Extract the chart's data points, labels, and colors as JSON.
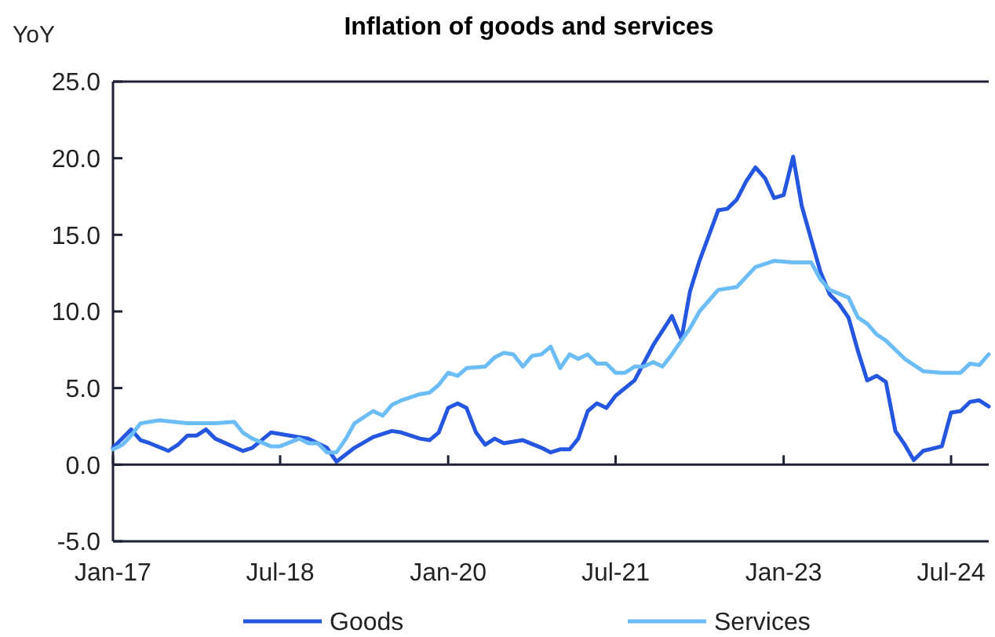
{
  "chart_data": {
    "type": "line",
    "title": "Inflation of goods and services",
    "ylabel": "YoY",
    "xlim": [
      "2017-01",
      "2024-11"
    ],
    "xticks": [
      {
        "value": "2017-01",
        "label": "Jan-17"
      },
      {
        "value": "2018-07",
        "label": "Jul-18"
      },
      {
        "value": "2020-01",
        "label": "Jan-20"
      },
      {
        "value": "2021-07",
        "label": "Jul-21"
      },
      {
        "value": "2023-01",
        "label": "Jan-23"
      },
      {
        "value": "2024-07",
        "label": "Jul-24"
      }
    ],
    "ylim": [
      -5,
      25
    ],
    "yticks": [
      {
        "value": -5,
        "label": "-5.0"
      },
      {
        "value": 0,
        "label": "0.0"
      },
      {
        "value": 5,
        "label": "5.0"
      },
      {
        "value": 10,
        "label": "10.0"
      },
      {
        "value": 15,
        "label": "15.0"
      },
      {
        "value": 20,
        "label": "20.0"
      },
      {
        "value": 25,
        "label": "25.0"
      }
    ],
    "legend": "bottom",
    "marker": "none",
    "line_style": "solid",
    "series": [
      {
        "name": "Goods",
        "color": "#2456e0",
        "x": [
          "2017-01",
          "2017-03",
          "2017-04",
          "2017-05",
          "2017-07",
          "2017-08",
          "2017-09",
          "2017-10",
          "2017-11",
          "2017-12",
          "2018-03",
          "2018-04",
          "2018-06",
          "2018-08",
          "2018-10",
          "2018-12",
          "2019-01",
          "2019-03",
          "2019-05",
          "2019-07",
          "2019-08",
          "2019-10",
          "2019-11",
          "2019-12",
          "2020-01",
          "2020-02",
          "2020-03",
          "2020-04",
          "2020-05",
          "2020-06",
          "2020-07",
          "2020-09",
          "2020-11",
          "2020-12",
          "2021-01",
          "2021-02",
          "2021-03",
          "2021-04",
          "2021-05",
          "2021-06",
          "2021-07",
          "2021-09",
          "2021-11",
          "2022-01",
          "2022-02",
          "2022-03",
          "2022-04",
          "2022-06",
          "2022-07",
          "2022-08",
          "2022-09",
          "2022-10",
          "2022-11",
          "2022-12",
          "2023-01",
          "2023-02",
          "2023-03",
          "2023-04",
          "2023-05",
          "2023-06",
          "2023-07",
          "2023-08",
          "2023-09",
          "2023-10",
          "2023-11",
          "2023-12",
          "2024-01",
          "2024-02",
          "2024-03",
          "2024-04",
          "2024-06",
          "2024-07",
          "2024-08",
          "2024-09",
          "2024-10",
          "2024-11"
        ],
        "values": [
          1.1,
          2.3,
          1.6,
          1.4,
          0.9,
          1.3,
          1.9,
          1.9,
          2.3,
          1.7,
          0.9,
          1.1,
          2.1,
          1.9,
          1.7,
          1.1,
          0.2,
          1.1,
          1.8,
          2.2,
          2.1,
          1.7,
          1.6,
          2.1,
          3.7,
          4.0,
          3.7,
          2.1,
          1.3,
          1.7,
          1.4,
          1.6,
          1.1,
          0.8,
          1.0,
          1.0,
          1.7,
          3.5,
          4.0,
          3.7,
          4.5,
          5.5,
          7.8,
          9.7,
          8.2,
          11.3,
          13.3,
          16.6,
          16.7,
          17.3,
          18.5,
          19.4,
          18.7,
          17.4,
          17.6,
          20.1,
          16.9,
          14.7,
          12.6,
          11.1,
          10.5,
          9.6,
          7.4,
          5.5,
          5.8,
          5.4,
          2.2,
          1.3,
          0.3,
          0.9,
          1.2,
          3.4,
          3.5,
          4.1,
          4.2,
          3.8
        ]
      },
      {
        "name": "Services",
        "color": "#6cbcf5",
        "x": [
          "2017-01",
          "2017-02",
          "2017-03",
          "2017-04",
          "2017-06",
          "2017-09",
          "2017-12",
          "2018-02",
          "2018-03",
          "2018-04",
          "2018-06",
          "2018-07",
          "2018-09",
          "2018-10",
          "2018-11",
          "2018-12",
          "2019-01",
          "2019-02",
          "2019-03",
          "2019-05",
          "2019-06",
          "2019-07",
          "2019-08",
          "2019-10",
          "2019-11",
          "2019-12",
          "2020-01",
          "2020-02",
          "2020-03",
          "2020-05",
          "2020-06",
          "2020-07",
          "2020-08",
          "2020-09",
          "2020-10",
          "2020-11",
          "2020-12",
          "2021-01",
          "2021-02",
          "2021-03",
          "2021-04",
          "2021-05",
          "2021-06",
          "2021-07",
          "2021-08",
          "2021-09",
          "2021-10",
          "2021-11",
          "2021-12",
          "2022-01",
          "2022-02",
          "2022-03",
          "2022-04",
          "2022-06",
          "2022-08",
          "2022-10",
          "2022-12",
          "2023-02",
          "2023-04",
          "2023-05",
          "2023-06",
          "2023-08",
          "2023-09",
          "2023-10",
          "2023-11",
          "2023-12",
          "2024-02",
          "2024-04",
          "2024-06",
          "2024-08",
          "2024-09",
          "2024-10",
          "2024-11"
        ],
        "values": [
          1.0,
          1.3,
          1.9,
          2.7,
          2.9,
          2.7,
          2.7,
          2.8,
          2.1,
          1.7,
          1.2,
          1.2,
          1.7,
          1.4,
          1.4,
          0.8,
          0.8,
          1.7,
          2.7,
          3.5,
          3.2,
          3.9,
          4.2,
          4.6,
          4.7,
          5.2,
          6.0,
          5.8,
          6.3,
          6.4,
          7.0,
          7.3,
          7.2,
          6.4,
          7.1,
          7.2,
          7.7,
          6.3,
          7.2,
          6.9,
          7.2,
          6.6,
          6.6,
          6.0,
          6.0,
          6.4,
          6.4,
          6.7,
          6.4,
          7.2,
          8.1,
          8.9,
          10.0,
          11.4,
          11.6,
          12.9,
          13.3,
          13.2,
          13.2,
          12.1,
          11.4,
          10.9,
          9.6,
          9.2,
          8.5,
          8.1,
          6.9,
          6.1,
          6.0,
          6.0,
          6.6,
          6.5,
          7.2
        ]
      }
    ]
  }
}
